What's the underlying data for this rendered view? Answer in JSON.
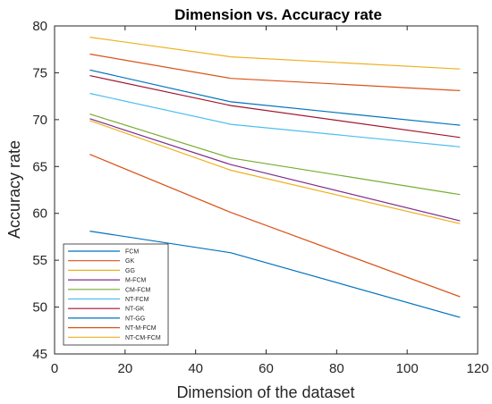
{
  "chart_data": {
    "type": "line",
    "title": "Dimension vs. Accuracy rate",
    "xlabel": "Dimension of the dataset",
    "ylabel": "Accuracy rate",
    "xlim": [
      0,
      120
    ],
    "ylim": [
      45,
      80
    ],
    "xticks": [
      "0",
      "20",
      "40",
      "60",
      "80",
      "100",
      "120"
    ],
    "yticks": [
      "45",
      "50",
      "55",
      "60",
      "65",
      "70",
      "75",
      "80"
    ],
    "grid": false,
    "legend_position": "bottom-left",
    "x": [
      10,
      50,
      115
    ],
    "series": [
      {
        "name": "FCM",
        "color": "#0072BD",
        "values": [
          58.1,
          55.8,
          48.9
        ]
      },
      {
        "name": "GK",
        "color": "#D95319",
        "values": [
          66.3,
          60.1,
          51.1
        ]
      },
      {
        "name": "GG",
        "color": "#EDB120",
        "values": [
          69.9,
          64.6,
          58.9
        ]
      },
      {
        "name": "M-FCM",
        "color": "#7E2F8E",
        "values": [
          70.1,
          65.2,
          59.2
        ]
      },
      {
        "name": "CM-FCM",
        "color": "#77AC30",
        "values": [
          70.6,
          65.9,
          62.0
        ]
      },
      {
        "name": "NT-FCM",
        "color": "#4DBEEE",
        "values": [
          72.8,
          69.5,
          67.1
        ]
      },
      {
        "name": "NT-GK",
        "color": "#A2142F",
        "values": [
          74.7,
          71.5,
          68.1
        ]
      },
      {
        "name": "NT-GG",
        "color": "#0072BD",
        "values": [
          75.3,
          71.9,
          69.4
        ]
      },
      {
        "name": "NT-M-FCM",
        "color": "#D95319",
        "values": [
          77.0,
          74.4,
          73.1
        ]
      },
      {
        "name": "NT-CM-FCM",
        "color": "#EDB120",
        "values": [
          78.8,
          76.7,
          75.4
        ]
      }
    ]
  }
}
